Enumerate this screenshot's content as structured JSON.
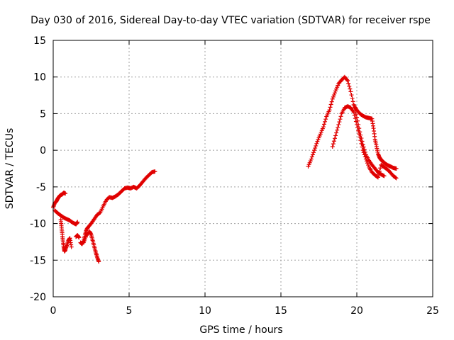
{
  "chart_data": {
    "type": "scatter",
    "title": "Day 030 of 2016, Sidereal Day-to-day VTEC variation (SDTVAR) for receiver rspe",
    "xlabel": "GPS time / hours",
    "ylabel": "SDTVAR / TECUs",
    "xlim": [
      0,
      25
    ],
    "ylim": [
      -20,
      15
    ],
    "xticks": [
      "0",
      "5",
      "10",
      "15",
      "20",
      "25"
    ],
    "yticks": [
      "-20",
      "-15",
      "-10",
      "-5",
      "0",
      "5",
      "10",
      "15"
    ],
    "grid": true,
    "marker": "+",
    "color": "#e00000",
    "series": [
      {
        "x": [
          0.0,
          0.1,
          0.2,
          0.3,
          0.4,
          0.5,
          0.6,
          0.7,
          0.8
        ],
        "y": [
          -7.8,
          -7.2,
          -7.0,
          -6.6,
          -6.3,
          -6.1,
          -6.0,
          -5.8,
          -5.9
        ]
      },
      {
        "x": [
          0.1,
          0.3,
          0.5,
          0.7,
          0.9,
          1.1,
          1.3,
          1.5,
          1.6
        ],
        "y": [
          -8.2,
          -8.6,
          -8.9,
          -9.2,
          -9.4,
          -9.6,
          -9.9,
          -10.1,
          -9.8
        ]
      },
      {
        "x": [
          0.5,
          0.55,
          0.6,
          0.65,
          0.7,
          0.75,
          0.8,
          0.9,
          1.0,
          1.1,
          1.2
        ],
        "y": [
          -9.5,
          -10.5,
          -11.5,
          -12.5,
          -13.3,
          -13.8,
          -13.6,
          -13.0,
          -12.3,
          -12.0,
          -13.2
        ]
      },
      {
        "x": [
          1.5,
          1.6,
          1.7
        ],
        "y": [
          -11.8,
          -11.6,
          -11.9
        ]
      },
      {
        "x": [
          1.8,
          1.9,
          2.0,
          2.1,
          2.2,
          2.3,
          2.5,
          2.7,
          2.9,
          3.1,
          3.3,
          3.5,
          3.7,
          3.9,
          4.1,
          4.3,
          4.5,
          4.7,
          4.9,
          5.1,
          5.3,
          5.5,
          5.7,
          5.9,
          6.1,
          6.3,
          6.5,
          6.7
        ],
        "y": [
          -12.6,
          -12.8,
          -12.4,
          -11.5,
          -10.8,
          -10.5,
          -10.0,
          -9.4,
          -8.8,
          -8.5,
          -7.6,
          -6.8,
          -6.4,
          -6.5,
          -6.3,
          -6.0,
          -5.6,
          -5.2,
          -5.1,
          -5.2,
          -5.0,
          -5.2,
          -4.8,
          -4.3,
          -3.8,
          -3.4,
          -3.0,
          -2.9
        ]
      },
      {
        "x": [
          2.0,
          2.2,
          2.4,
          2.5,
          2.6,
          2.7,
          2.8,
          2.9,
          3.0
        ],
        "y": [
          -12.6,
          -11.6,
          -11.1,
          -11.5,
          -12.3,
          -13.1,
          -13.9,
          -14.6,
          -15.2
        ]
      },
      {
        "x": [
          16.8,
          17.0,
          17.2,
          17.4,
          17.6,
          17.8,
          18.0,
          18.2,
          18.4,
          18.6,
          18.8,
          19.0,
          19.2,
          19.4,
          19.6,
          19.8,
          20.0,
          20.2,
          20.4,
          20.6,
          20.8,
          21.0,
          21.2,
          21.4,
          21.6,
          21.8
        ],
        "y": [
          -2.2,
          -1.2,
          0.0,
          1.2,
          2.2,
          3.2,
          4.6,
          5.5,
          7.0,
          8.1,
          9.1,
          9.6,
          10.0,
          9.5,
          8.0,
          6.2,
          4.5,
          2.5,
          0.8,
          -0.6,
          -1.4,
          -2.0,
          -2.5,
          -3.0,
          -3.3,
          -3.5
        ]
      },
      {
        "x": [
          18.4,
          18.6,
          18.8,
          19.0,
          19.2,
          19.4,
          19.6,
          19.8,
          20.0,
          20.2,
          20.4,
          20.6,
          20.8,
          21.0,
          21.2,
          21.4,
          21.6,
          21.8,
          22.0,
          22.2,
          22.4,
          22.6
        ],
        "y": [
          0.5,
          2.0,
          3.5,
          5.0,
          5.8,
          6.0,
          5.8,
          5.2,
          3.5,
          1.8,
          0.0,
          -1.2,
          -2.3,
          -3.0,
          -3.4,
          -3.7,
          -2.0,
          -2.3,
          -2.6,
          -3.0,
          -3.5,
          -3.8
        ]
      },
      {
        "x": [
          19.8,
          20.0,
          20.2,
          20.4,
          20.6,
          20.8,
          21.0,
          21.1,
          21.2,
          21.3,
          21.4,
          21.5,
          21.6,
          21.7,
          21.8,
          22.0,
          22.2,
          22.4,
          22.6
        ],
        "y": [
          6.2,
          5.5,
          5.0,
          4.7,
          4.5,
          4.4,
          4.3,
          3.0,
          1.5,
          0.5,
          -0.5,
          -1.0,
          -1.3,
          -1.5,
          -1.7,
          -2.0,
          -2.2,
          -2.4,
          -2.5
        ]
      }
    ]
  }
}
